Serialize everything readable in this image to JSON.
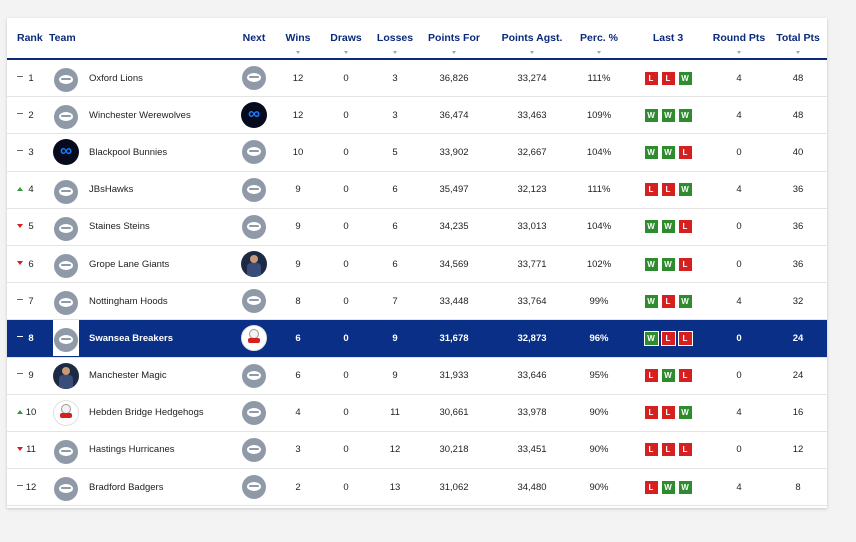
{
  "headers": {
    "rank": "Rank",
    "team": "Team",
    "next": "Next",
    "wins": "Wins",
    "draws": "Draws",
    "losses": "Losses",
    "points_for": "Points For",
    "points_agst": "Points Agst.",
    "perc": "Perc. %",
    "last3": "Last 3",
    "round_pts": "Round Pts",
    "total_pts": "Total Pts"
  },
  "colors": {
    "header_text": "#0a2a7a",
    "highlight_row": "#0a2f86",
    "win": "#2e8b2e",
    "loss": "#d62020",
    "up": "#2e9e3a",
    "down": "#d62020"
  },
  "rows": [
    {
      "rank": "1",
      "move": "same",
      "team": "Oxford Lions",
      "team_logo": "generic-logo",
      "next_logo": "generic-logo",
      "wins": "12",
      "draws": "0",
      "losses": "3",
      "pf": "36,826",
      "pa": "33,274",
      "perc": "111%",
      "last3": [
        "L",
        "L",
        "W"
      ],
      "round_pts": "4",
      "total": "48",
      "highlight": false
    },
    {
      "rank": "2",
      "move": "same",
      "team": "Winchester Werewolves",
      "team_logo": "generic-logo",
      "next_logo": "infinity-logo",
      "wins": "12",
      "draws": "0",
      "losses": "3",
      "pf": "36,474",
      "pa": "33,463",
      "perc": "109%",
      "last3": [
        "W",
        "W",
        "W"
      ],
      "round_pts": "4",
      "total": "48",
      "highlight": false
    },
    {
      "rank": "3",
      "move": "same",
      "team": "Blackpool Bunnies",
      "team_logo": "infinity-logo",
      "next_logo": "generic-logo",
      "wins": "10",
      "draws": "0",
      "losses": "5",
      "pf": "33,902",
      "pa": "32,667",
      "perc": "104%",
      "last3": [
        "W",
        "W",
        "L"
      ],
      "round_pts": "0",
      "total": "40",
      "highlight": false
    },
    {
      "rank": "4",
      "move": "up",
      "team": "JBsHawks",
      "team_logo": "generic-logo",
      "next_logo": "generic-logo",
      "wins": "9",
      "draws": "0",
      "losses": "6",
      "pf": "35,497",
      "pa": "32,123",
      "perc": "111%",
      "last3": [
        "L",
        "L",
        "W"
      ],
      "round_pts": "4",
      "total": "36",
      "highlight": false
    },
    {
      "rank": "5",
      "move": "down",
      "team": "Staines Steins",
      "team_logo": "generic-logo",
      "next_logo": "generic-logo",
      "wins": "9",
      "draws": "0",
      "losses": "6",
      "pf": "34,235",
      "pa": "33,013",
      "perc": "104%",
      "last3": [
        "W",
        "W",
        "L"
      ],
      "round_pts": "0",
      "total": "36",
      "highlight": false
    },
    {
      "rank": "6",
      "move": "down",
      "team": "Grope Lane Giants",
      "team_logo": "generic-logo",
      "next_logo": "player-logo",
      "wins": "9",
      "draws": "0",
      "losses": "6",
      "pf": "34,569",
      "pa": "33,771",
      "perc": "102%",
      "last3": [
        "W",
        "W",
        "L"
      ],
      "round_pts": "0",
      "total": "36",
      "highlight": false
    },
    {
      "rank": "7",
      "move": "same",
      "team": "Nottingham Hoods",
      "team_logo": "generic-logo",
      "next_logo": "generic-logo",
      "wins": "8",
      "draws": "0",
      "losses": "7",
      "pf": "33,448",
      "pa": "33,764",
      "perc": "99%",
      "last3": [
        "W",
        "L",
        "W"
      ],
      "round_pts": "4",
      "total": "32",
      "highlight": false
    },
    {
      "rank": "8",
      "move": "same",
      "team": "Swansea Breakers",
      "team_logo": "generic-logo",
      "next_logo": "snowman-logo",
      "wins": "6",
      "draws": "0",
      "losses": "9",
      "pf": "31,678",
      "pa": "32,873",
      "perc": "96%",
      "last3": [
        "W",
        "L",
        "L"
      ],
      "round_pts": "0",
      "total": "24",
      "highlight": true
    },
    {
      "rank": "9",
      "move": "same",
      "team": "Manchester Magic",
      "team_logo": "player-logo",
      "next_logo": "generic-logo",
      "wins": "6",
      "draws": "0",
      "losses": "9",
      "pf": "31,933",
      "pa": "33,646",
      "perc": "95%",
      "last3": [
        "L",
        "W",
        "L"
      ],
      "round_pts": "0",
      "total": "24",
      "highlight": false
    },
    {
      "rank": "10",
      "move": "up",
      "team": "Hebden Bridge Hedgehogs",
      "team_logo": "snowman-logo",
      "next_logo": "generic-logo",
      "wins": "4",
      "draws": "0",
      "losses": "11",
      "pf": "30,661",
      "pa": "33,978",
      "perc": "90%",
      "last3": [
        "L",
        "L",
        "W"
      ],
      "round_pts": "4",
      "total": "16",
      "highlight": false
    },
    {
      "rank": "11",
      "move": "down",
      "team": "Hastings Hurricanes",
      "team_logo": "generic-logo",
      "next_logo": "generic-logo",
      "wins": "3",
      "draws": "0",
      "losses": "12",
      "pf": "30,218",
      "pa": "33,451",
      "perc": "90%",
      "last3": [
        "L",
        "L",
        "L"
      ],
      "round_pts": "0",
      "total": "12",
      "highlight": false
    },
    {
      "rank": "12",
      "move": "same",
      "team": "Bradford Badgers",
      "team_logo": "generic-logo",
      "next_logo": "generic-logo",
      "wins": "2",
      "draws": "0",
      "losses": "13",
      "pf": "31,062",
      "pa": "34,480",
      "perc": "90%",
      "last3": [
        "L",
        "W",
        "W"
      ],
      "round_pts": "4",
      "total": "8",
      "highlight": false
    }
  ]
}
